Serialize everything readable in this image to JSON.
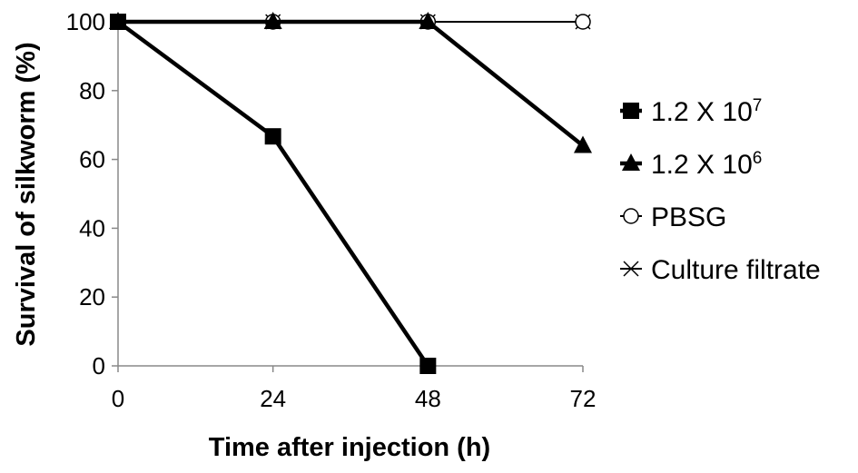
{
  "chart_data": {
    "type": "line",
    "title": "",
    "xlabel": "Time after injection (h)",
    "ylabel": "Survival of silkworm (%)",
    "x": [
      0,
      24,
      48,
      72
    ],
    "xticks": [
      "0",
      "24",
      "48",
      "72"
    ],
    "yticks": [
      "0",
      "20",
      "40",
      "60",
      "80",
      "100"
    ],
    "xlim": [
      0,
      72
    ],
    "ylim": [
      0,
      100
    ],
    "grid": false,
    "legend_position": "right",
    "series": [
      {
        "name": "1.2 X 10",
        "name_sup": "7",
        "marker": "square",
        "color": "#000000",
        "values": [
          100,
          66.7,
          0,
          null
        ]
      },
      {
        "name": "1.2 X 10",
        "name_sup": "6",
        "marker": "triangle",
        "color": "#000000",
        "values": [
          100,
          100,
          100,
          64
        ]
      },
      {
        "name": "PBSG",
        "marker": "circle-open",
        "color": "#000000",
        "values": [
          100,
          100,
          100,
          100
        ]
      },
      {
        "name": "Culture filtrate",
        "marker": "x",
        "color": "#000000",
        "values": [
          100,
          100,
          100,
          100
        ]
      }
    ]
  }
}
